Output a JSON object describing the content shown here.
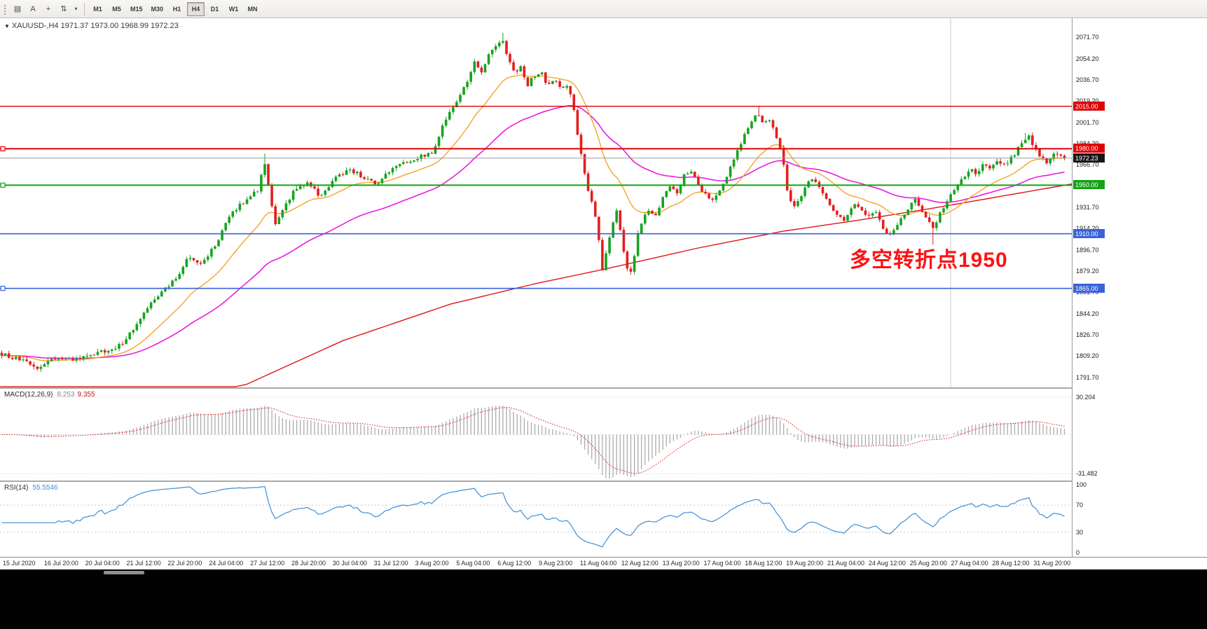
{
  "toolbar": {
    "tools": [
      {
        "name": "chart-window-icon",
        "glyph": "▤"
      },
      {
        "name": "text-tool-icon",
        "glyph": "A"
      },
      {
        "name": "crosshair-tool-icon",
        "glyph": "+"
      },
      {
        "name": "indicators-tool-icon",
        "glyph": "⇅"
      }
    ],
    "dropdown_glyph": "▾",
    "timeframes": [
      "M1",
      "M5",
      "M15",
      "M30",
      "H1",
      "H4",
      "D1",
      "W1",
      "MN"
    ],
    "active_timeframe": "H4"
  },
  "chart_header": {
    "collapse_glyph": "▼",
    "title": "XAUUSD-,H4  1971.37 1973.00 1968.99 1972.23"
  },
  "chart_data": {
    "type": "candlestick",
    "symbol": "XAUUSD-",
    "timeframe": "H4",
    "ohlc": {
      "open": 1971.37,
      "high": 1973.0,
      "low": 1968.99,
      "close": 1972.23
    },
    "price_axis": {
      "top_tick": 2071.7,
      "step": 17.5,
      "count": 17,
      "view_max": 2087.5,
      "view_min": 1783.5
    },
    "num_candles": 300,
    "close_path": [
      [
        0,
        1811
      ],
      [
        0.02,
        1805
      ],
      [
        0.033,
        1799
      ],
      [
        0.048,
        1807
      ],
      [
        0.07,
        1806
      ],
      [
        0.09,
        1812
      ],
      [
        0.105,
        1814
      ],
      [
        0.118,
        1824
      ],
      [
        0.131,
        1842
      ],
      [
        0.144,
        1856
      ],
      [
        0.152,
        1863
      ],
      [
        0.163,
        1872
      ],
      [
        0.176,
        1892
      ],
      [
        0.188,
        1885
      ],
      [
        0.202,
        1902
      ],
      [
        0.216,
        1927
      ],
      [
        0.23,
        1938
      ],
      [
        0.242,
        1947
      ],
      [
        0.247,
        1971
      ],
      [
        0.252,
        1942
      ],
      [
        0.258,
        1917
      ],
      [
        0.266,
        1931
      ],
      [
        0.275,
        1946
      ],
      [
        0.288,
        1953
      ],
      [
        0.3,
        1940
      ],
      [
        0.314,
        1956
      ],
      [
        0.327,
        1963
      ],
      [
        0.34,
        1957
      ],
      [
        0.353,
        1950
      ],
      [
        0.366,
        1963
      ],
      [
        0.379,
        1968
      ],
      [
        0.392,
        1973
      ],
      [
        0.405,
        1976
      ],
      [
        0.413,
        1994
      ],
      [
        0.42,
        2009
      ],
      [
        0.428,
        2019
      ],
      [
        0.438,
        2036
      ],
      [
        0.445,
        2051
      ],
      [
        0.451,
        2042
      ],
      [
        0.458,
        2056
      ],
      [
        0.464,
        2063
      ],
      [
        0.47,
        2071
      ],
      [
        0.476,
        2057
      ],
      [
        0.483,
        2041
      ],
      [
        0.489,
        2048
      ],
      [
        0.494,
        2031
      ],
      [
        0.5,
        2039
      ],
      [
        0.507,
        2044
      ],
      [
        0.514,
        2031
      ],
      [
        0.52,
        2037
      ],
      [
        0.527,
        2028
      ],
      [
        0.533,
        2033
      ],
      [
        0.538,
        2014
      ],
      [
        0.543,
        1986
      ],
      [
        0.548,
        1961
      ],
      [
        0.553,
        1941
      ],
      [
        0.558,
        1929
      ],
      [
        0.562,
        1903
      ],
      [
        0.566,
        1876
      ],
      [
        0.57,
        1903
      ],
      [
        0.574,
        1913
      ],
      [
        0.578,
        1931
      ],
      [
        0.583,
        1907
      ],
      [
        0.588,
        1881
      ],
      [
        0.593,
        1879
      ],
      [
        0.598,
        1909
      ],
      [
        0.603,
        1921
      ],
      [
        0.609,
        1931
      ],
      [
        0.615,
        1923
      ],
      [
        0.621,
        1939
      ],
      [
        0.628,
        1951
      ],
      [
        0.635,
        1944
      ],
      [
        0.642,
        1958
      ],
      [
        0.648,
        1963
      ],
      [
        0.655,
        1951
      ],
      [
        0.661,
        1943
      ],
      [
        0.668,
        1937
      ],
      [
        0.674,
        1945
      ],
      [
        0.681,
        1953
      ],
      [
        0.687,
        1969
      ],
      [
        0.693,
        1979
      ],
      [
        0.699,
        1993
      ],
      [
        0.705,
        2003
      ],
      [
        0.711,
        2009
      ],
      [
        0.717,
        1999
      ],
      [
        0.722,
        2006
      ],
      [
        0.728,
        1991
      ],
      [
        0.734,
        1979
      ],
      [
        0.739,
        1947
      ],
      [
        0.744,
        1931
      ],
      [
        0.75,
        1939
      ],
      [
        0.756,
        1947
      ],
      [
        0.762,
        1956
      ],
      [
        0.768,
        1949
      ],
      [
        0.774,
        1941
      ],
      [
        0.78,
        1933
      ],
      [
        0.786,
        1927
      ],
      [
        0.792,
        1921
      ],
      [
        0.798,
        1929
      ],
      [
        0.804,
        1936
      ],
      [
        0.81,
        1929
      ],
      [
        0.816,
        1925
      ],
      [
        0.822,
        1931
      ],
      [
        0.828,
        1917
      ],
      [
        0.834,
        1909
      ],
      [
        0.84,
        1913
      ],
      [
        0.846,
        1921
      ],
      [
        0.852,
        1927
      ],
      [
        0.858,
        1941
      ],
      [
        0.864,
        1933
      ],
      [
        0.87,
        1923
      ],
      [
        0.876,
        1913
      ],
      [
        0.882,
        1926
      ],
      [
        0.888,
        1933
      ],
      [
        0.894,
        1943
      ],
      [
        0.9,
        1951
      ],
      [
        0.906,
        1957
      ],
      [
        0.912,
        1965
      ],
      [
        0.918,
        1959
      ],
      [
        0.924,
        1967
      ],
      [
        0.93,
        1963
      ],
      [
        0.936,
        1969
      ],
      [
        0.942,
        1965
      ],
      [
        0.948,
        1971
      ],
      [
        0.954,
        1977
      ],
      [
        0.96,
        1986
      ],
      [
        0.966,
        1991
      ],
      [
        0.972,
        1981
      ],
      [
        0.978,
        1973
      ],
      [
        0.984,
        1969
      ],
      [
        0.99,
        1975
      ],
      [
        1,
        1972.23
      ]
    ],
    "wick_extremes": {
      "high": 2075.5,
      "low": 1863.2
    },
    "wick_pins": [
      {
        "t": 0.247,
        "high": 1976
      },
      {
        "t": 0.711,
        "high": 2015.5
      },
      {
        "t": 0.877,
        "low": 1901
      },
      {
        "t": 0.962,
        "high": 1993
      }
    ],
    "candles": {
      "up_color": "#17a322",
      "down_color": "#e31f1f"
    },
    "horizontal_lines": [
      {
        "value": 2015.0,
        "label": "2015.00",
        "color": "#df0000",
        "width": 1.4,
        "left_marker": false
      },
      {
        "value": 1980.0,
        "label": "1980.00",
        "color": "#df0000",
        "width": 2,
        "left_marker": true
      },
      {
        "value": 1950.0,
        "label": "1950.00",
        "color": "#13a313",
        "width": 2,
        "left_marker": true
      },
      {
        "value": 1910.0,
        "label": "1910.00",
        "color": "#3a62d8",
        "width": 1.6,
        "left_marker": false
      },
      {
        "value": 1865.0,
        "label": "1865.00",
        "color": "#3a62d8",
        "width": 1.6,
        "left_marker": true
      }
    ],
    "bid_line": {
      "value": 1972.23,
      "label": "1972.23",
      "line_color": "#9a9a9a",
      "badge_bg": "#161616"
    },
    "annotation": {
      "text": "多空转折点1950",
      "color": "#ff1212"
    },
    "moving_averages": [
      {
        "name": "ma-fast-orange",
        "type": "ema",
        "period": 20,
        "color": "#f6a429"
      },
      {
        "name": "ma-mid-magenta",
        "type": "ema",
        "period": 55,
        "color": "#e91ddf"
      },
      {
        "name": "ma-slow-red",
        "type": "path",
        "color": "#df1515",
        "path": [
          [
            0.225,
            1784
          ],
          [
            0.32,
            1822
          ],
          [
            0.42,
            1852
          ],
          [
            0.5,
            1869
          ],
          [
            0.565,
            1881
          ],
          [
            0.65,
            1898
          ],
          [
            0.73,
            1912
          ],
          [
            0.8,
            1921
          ],
          [
            0.87,
            1931
          ],
          [
            0.935,
            1941
          ],
          [
            1,
            1951
          ]
        ]
      }
    ],
    "vertical_line_t": 0.887,
    "macd_panel": {
      "label": "MACD(12,26,9)",
      "main_value": "8.253",
      "signal_value": "9.355",
      "fast": 12,
      "slow": 26,
      "signal": 9,
      "axis_max_label": "30.204",
      "axis_min_label": "-31.482",
      "histogram_color": "#ababab",
      "signal_color": "#df1515"
    },
    "rsi_panel": {
      "label": "RSI(14)",
      "value": "55.5546",
      "period": 14,
      "levels": [
        70,
        30
      ],
      "axis_labels": [
        100,
        70,
        30,
        0
      ],
      "line_color": "#3e8fd6"
    },
    "time_labels": [
      "15 Jul 2020",
      "16 Jul 20:00",
      "20 Jul 04:00",
      "21 Jul 12:00",
      "22 Jul 20:00",
      "24 Jul 04:00",
      "27 Jul 12:00",
      "28 Jul 20:00",
      "30 Jul 04:00",
      "31 Jul 12:00",
      "3 Aug 20:00",
      "5 Aug 04:00",
      "6 Aug 12:00",
      "9 Aug 23:00",
      "11 Aug 04:00",
      "12 Aug 12:00",
      "13 Aug 20:00",
      "17 Aug 04:00",
      "18 Aug 12:00",
      "19 Aug 20:00",
      "21 Aug 04:00",
      "24 Aug 12:00",
      "25 Aug 20:00",
      "27 Aug 04:00",
      "28 Aug 12:00",
      "31 Aug 20:00"
    ]
  }
}
